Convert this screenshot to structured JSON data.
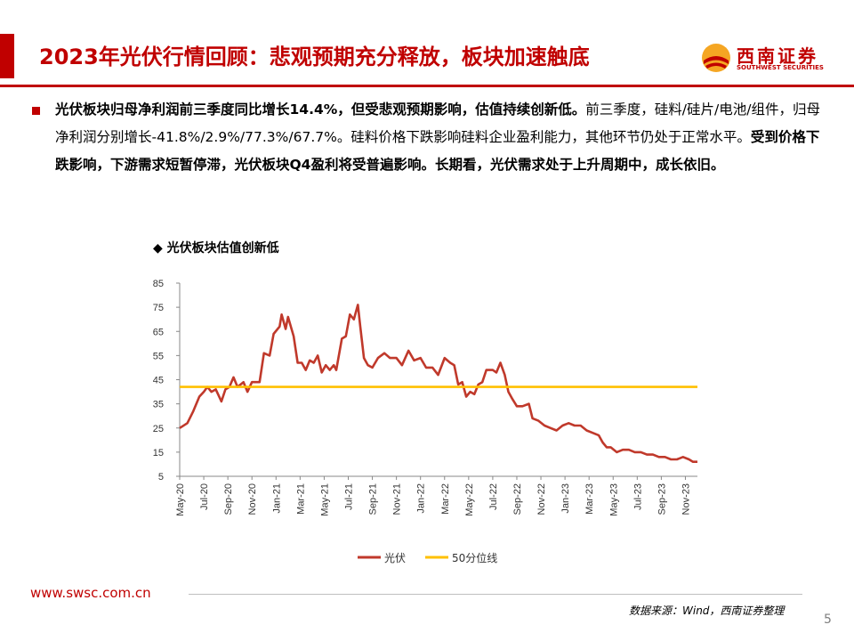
{
  "header": {
    "title": "2023年光伏行情回顾：悲观预期充分释放，板块加速触底",
    "logo_cn": "西南证券",
    "logo_en": "SOUTHWEST SECURITIES"
  },
  "body": {
    "seg1_bold": "光伏板块归母净利润前三季度同比增长14.4%，但受悲观预期影响，估值持续创新低。",
    "seg2": "前三季度，硅料/硅片/电池/组件，归母净利润分别增长-41.8%/2.9%/77.3%/67.7%。硅料价格下跌影响硅料企业盈利能力，其他环节仍处于正常水平。",
    "seg3_bold": "受到价格下跌影响，下游需求短暂停滞，光伏板块Q4盈利将受普遍影响。长期看，光伏需求处于上升周期中，成长依旧。"
  },
  "chart_caption": "◆ 光伏板块估值创新低",
  "chart_data": {
    "type": "line",
    "title": "",
    "xlabel": "",
    "ylabel": "",
    "ylim": [
      5,
      85
    ],
    "yticks": [
      5,
      15,
      25,
      35,
      45,
      55,
      65,
      75,
      85
    ],
    "x_range": [
      "2020-05",
      "2023-12"
    ],
    "xticks": [
      "May-20",
      "Jul-20",
      "Sep-20",
      "Nov-20",
      "Jan-21",
      "Mar-21",
      "May-21",
      "Jul-21",
      "Sep-21",
      "Nov-21",
      "Jan-22",
      "Mar-22",
      "May-22",
      "Jul-22",
      "Sep-22",
      "Nov-22",
      "Jan-23",
      "Mar-23",
      "May-23",
      "Jul-23",
      "Sep-23",
      "Nov-23"
    ],
    "grid": false,
    "legend": "bottom",
    "series": [
      {
        "name": "光伏",
        "color": "#c0392b",
        "points": [
          [
            "2020-05-01",
            25
          ],
          [
            "2020-05-20",
            27
          ],
          [
            "2020-06-05",
            32
          ],
          [
            "2020-06-20",
            38
          ],
          [
            "2020-07-01",
            40
          ],
          [
            "2020-07-10",
            42
          ],
          [
            "2020-07-20",
            40
          ],
          [
            "2020-08-01",
            41
          ],
          [
            "2020-08-15",
            36
          ],
          [
            "2020-08-25",
            41
          ],
          [
            "2020-09-05",
            42
          ],
          [
            "2020-09-15",
            46
          ],
          [
            "2020-09-25",
            42
          ],
          [
            "2020-10-10",
            44
          ],
          [
            "2020-10-20",
            40
          ],
          [
            "2020-11-01",
            44
          ],
          [
            "2020-11-20",
            44
          ],
          [
            "2020-12-01",
            56
          ],
          [
            "2020-12-15",
            55
          ],
          [
            "2020-12-25",
            64
          ],
          [
            "2021-01-10",
            67
          ],
          [
            "2021-01-15",
            72
          ],
          [
            "2021-01-25",
            66
          ],
          [
            "2021-02-01",
            71
          ],
          [
            "2021-02-15",
            63
          ],
          [
            "2021-02-25",
            52
          ],
          [
            "2021-03-05",
            52
          ],
          [
            "2021-03-15",
            49
          ],
          [
            "2021-03-25",
            53
          ],
          [
            "2021-04-05",
            52
          ],
          [
            "2021-04-15",
            55
          ],
          [
            "2021-04-25",
            48
          ],
          [
            "2021-05-05",
            51
          ],
          [
            "2021-05-15",
            49
          ],
          [
            "2021-05-25",
            51
          ],
          [
            "2021-06-01",
            49
          ],
          [
            "2021-06-15",
            62
          ],
          [
            "2021-06-25",
            63
          ],
          [
            "2021-07-05",
            72
          ],
          [
            "2021-07-15",
            70
          ],
          [
            "2021-07-25",
            76
          ],
          [
            "2021-08-01",
            67
          ],
          [
            "2021-08-10",
            54
          ],
          [
            "2021-08-20",
            51
          ],
          [
            "2021-09-01",
            50
          ],
          [
            "2021-09-15",
            54
          ],
          [
            "2021-10-01",
            56
          ],
          [
            "2021-10-15",
            54
          ],
          [
            "2021-11-01",
            54
          ],
          [
            "2021-11-15",
            51
          ],
          [
            "2021-12-01",
            57
          ],
          [
            "2021-12-15",
            53
          ],
          [
            "2022-01-01",
            54
          ],
          [
            "2022-01-15",
            50
          ],
          [
            "2022-02-01",
            50
          ],
          [
            "2022-02-15",
            47
          ],
          [
            "2022-03-01",
            54
          ],
          [
            "2022-03-15",
            52
          ],
          [
            "2022-03-25",
            51
          ],
          [
            "2022-04-05",
            43
          ],
          [
            "2022-04-15",
            44
          ],
          [
            "2022-04-25",
            38
          ],
          [
            "2022-05-05",
            40
          ],
          [
            "2022-05-15",
            39
          ],
          [
            "2022-05-25",
            43
          ],
          [
            "2022-06-05",
            44
          ],
          [
            "2022-06-15",
            49
          ],
          [
            "2022-07-01",
            49
          ],
          [
            "2022-07-10",
            48
          ],
          [
            "2022-07-20",
            52
          ],
          [
            "2022-08-01",
            47
          ],
          [
            "2022-08-10",
            40
          ],
          [
            "2022-08-20",
            37
          ],
          [
            "2022-09-01",
            34
          ],
          [
            "2022-09-15",
            34
          ],
          [
            "2022-10-01",
            35
          ],
          [
            "2022-10-10",
            29
          ],
          [
            "2022-10-25",
            28
          ],
          [
            "2022-11-10",
            26
          ],
          [
            "2022-11-25",
            25
          ],
          [
            "2022-12-10",
            24
          ],
          [
            "2022-12-25",
            26
          ],
          [
            "2023-01-10",
            27
          ],
          [
            "2023-01-25",
            26
          ],
          [
            "2023-02-10",
            26
          ],
          [
            "2023-02-25",
            24
          ],
          [
            "2023-03-10",
            23
          ],
          [
            "2023-03-25",
            22
          ],
          [
            "2023-04-05",
            19
          ],
          [
            "2023-04-15",
            17
          ],
          [
            "2023-04-25",
            17
          ],
          [
            "2023-05-10",
            15
          ],
          [
            "2023-05-25",
            16
          ],
          [
            "2023-06-10",
            16
          ],
          [
            "2023-06-25",
            15
          ],
          [
            "2023-07-10",
            15
          ],
          [
            "2023-07-25",
            14
          ],
          [
            "2023-08-10",
            14
          ],
          [
            "2023-08-25",
            13
          ],
          [
            "2023-09-10",
            13
          ],
          [
            "2023-09-25",
            12
          ],
          [
            "2023-10-10",
            12
          ],
          [
            "2023-10-25",
            13
          ],
          [
            "2023-11-10",
            12
          ],
          [
            "2023-11-20",
            11
          ],
          [
            "2023-12-01",
            11
          ]
        ]
      },
      {
        "name": "50分位线",
        "color": "#ffc000",
        "points": [
          [
            "2020-05-01",
            42
          ],
          [
            "2023-12-01",
            42
          ]
        ]
      }
    ]
  },
  "footer": {
    "url": "www.swsc.com.cn",
    "source": "数据来源：Wind，西南证券整理",
    "page": "5"
  }
}
